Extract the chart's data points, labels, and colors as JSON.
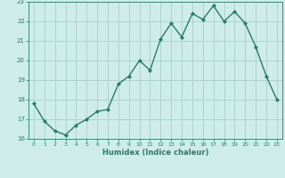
{
  "x": [
    0,
    1,
    2,
    3,
    4,
    5,
    6,
    7,
    8,
    9,
    10,
    11,
    12,
    13,
    14,
    15,
    16,
    17,
    18,
    19,
    20,
    21,
    22,
    23
  ],
  "y": [
    17.8,
    16.9,
    16.4,
    16.2,
    16.7,
    17.0,
    17.4,
    17.5,
    18.8,
    19.2,
    20.0,
    19.5,
    21.1,
    21.9,
    21.2,
    22.4,
    22.1,
    22.8,
    22.0,
    22.5,
    21.9,
    20.7,
    19.2,
    18.0
  ],
  "xlabel": "Humidex (Indice chaleur)",
  "ylim": [
    16,
    23
  ],
  "xlim": [
    -0.5,
    23.5
  ],
  "yticks": [
    16,
    17,
    18,
    19,
    20,
    21,
    22,
    23
  ],
  "xticks": [
    0,
    1,
    2,
    3,
    4,
    5,
    6,
    7,
    8,
    9,
    10,
    11,
    12,
    13,
    14,
    15,
    16,
    17,
    18,
    19,
    20,
    21,
    22,
    23
  ],
  "line_color": "#2a7a6a",
  "marker_color": "#2a7a6a",
  "bg_color": "#ceecea",
  "grid_color": "#aacfcd",
  "tick_color": "#2a7a6a",
  "label_color": "#2a7a6a",
  "axis_color": "#2a7a6a"
}
